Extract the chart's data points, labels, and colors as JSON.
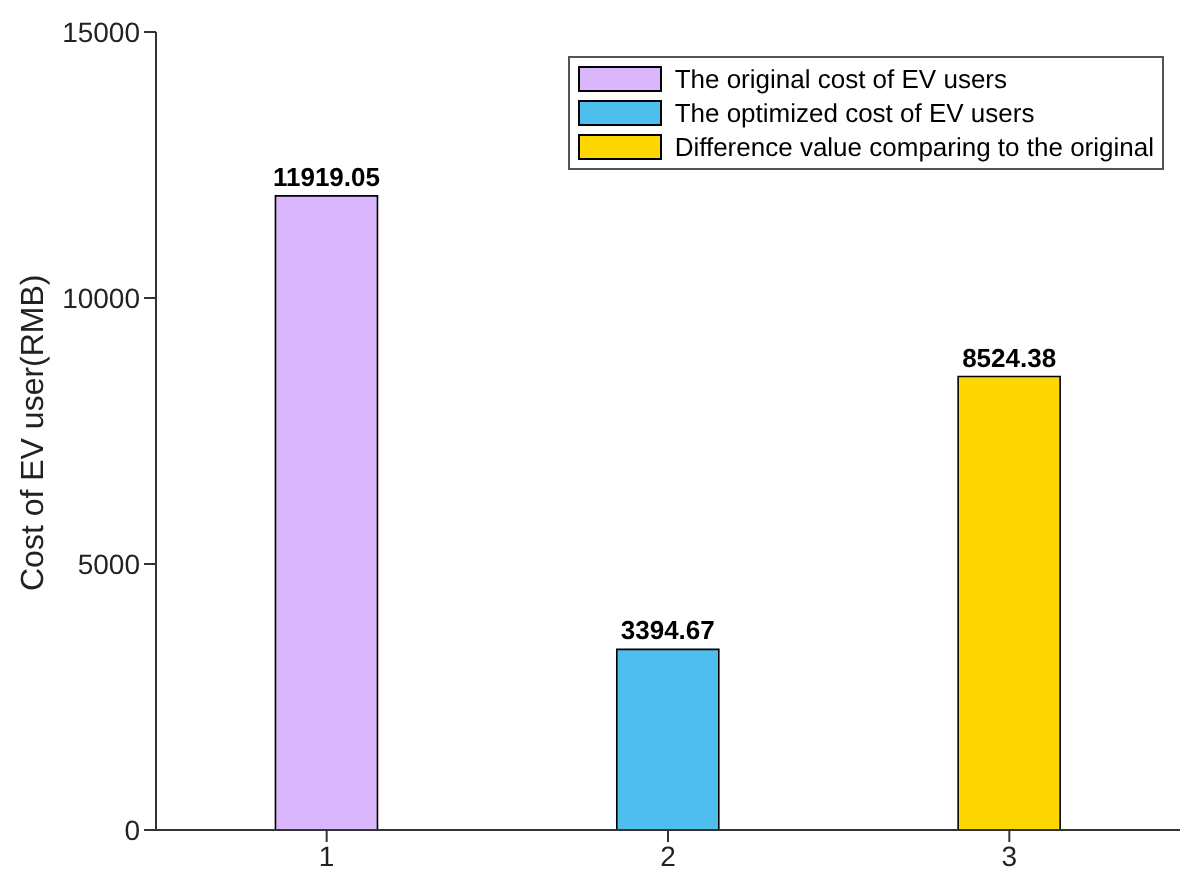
{
  "chart_data": {
    "type": "bar",
    "ylabel": "Cost of EV user(RMB)",
    "categories": [
      "1",
      "2",
      "3"
    ],
    "series": [
      {
        "name": "The original cost of EV users",
        "color": "#dab6fc",
        "values": [
          11919.05,
          null,
          null
        ]
      },
      {
        "name": "The optimized cost of EV users",
        "color": "#4dbeee",
        "values": [
          null,
          3394.67,
          null
        ]
      },
      {
        "name": "Difference value comparing to the original",
        "color": "#ffd700",
        "values": [
          null,
          null,
          8524.38
        ]
      }
    ],
    "ylim": [
      0,
      15000
    ],
    "yticks": [
      0,
      5000,
      10000,
      15000
    ],
    "grid": false,
    "legend": "top right",
    "data_labels": true
  }
}
